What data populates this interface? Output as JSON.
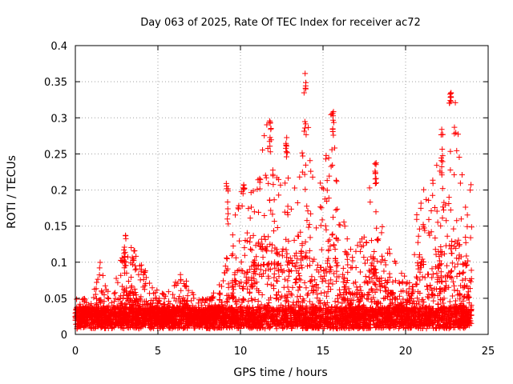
{
  "chart_data": {
    "type": "scatter",
    "title": "Day 063 of 2025, Rate Of TEC Index for receiver ac72",
    "xlabel": "GPS time / hours",
    "ylabel": "ROTI / TECUs",
    "xlim": [
      0,
      25
    ],
    "ylim": [
      0,
      0.4
    ],
    "xticks": [
      "0",
      "5",
      "10",
      "15",
      "20",
      "25"
    ],
    "yticks": [
      "0",
      "0.05",
      "0.1",
      "0.15",
      "0.2",
      "0.25",
      "0.3",
      "0.35",
      "0.4"
    ],
    "grid": true,
    "marker": "+",
    "color": "#ff0000",
    "x_extent": [
      0,
      24
    ],
    "series": [
      {
        "envelope_hours": [
          0,
          0.5,
          1,
          1.5,
          2,
          2.5,
          3,
          3.5,
          4,
          4.5,
          5,
          5.5,
          6,
          6.5,
          7,
          7.5,
          8,
          8.5,
          9,
          9.5,
          10,
          10.5,
          11,
          11.5,
          12,
          12.5,
          13,
          13.5,
          14,
          14.5,
          15,
          15.5,
          16,
          16.5,
          17,
          17.5,
          18,
          18.5,
          19,
          19.5,
          20,
          20.5,
          21,
          21.5,
          22,
          22.5,
          23,
          23.5,
          24
        ],
        "envelope_roti": [
          0.05,
          0.05,
          0.045,
          0.1,
          0.06,
          0.08,
          0.135,
          0.12,
          0.1,
          0.08,
          0.06,
          0.06,
          0.07,
          0.09,
          0.06,
          0.05,
          0.05,
          0.06,
          0.09,
          0.15,
          0.22,
          0.18,
          0.24,
          0.3,
          0.25,
          0.27,
          0.22,
          0.2,
          0.38,
          0.2,
          0.22,
          0.31,
          0.2,
          0.13,
          0.12,
          0.14,
          0.24,
          0.16,
          0.14,
          0.09,
          0.08,
          0.14,
          0.22,
          0.2,
          0.26,
          0.23,
          0.335,
          0.2,
          0.22
        ],
        "clusters": [
          {
            "x": 3.0,
            "y": [
              0.1,
              0.138
            ]
          },
          {
            "x": 9.2,
            "y": [
              0.15,
              0.215
            ]
          },
          {
            "x": 10.2,
            "y": [
              0.19,
              0.21
            ]
          },
          {
            "x": 11.8,
            "y": [
              0.25,
              0.3
            ]
          },
          {
            "x": 12.8,
            "y": [
              0.24,
              0.275
            ]
          },
          {
            "x": 13.9,
            "y": [
              0.28,
              0.38
            ]
          },
          {
            "x": 15.6,
            "y": [
              0.26,
              0.31
            ]
          },
          {
            "x": 18.2,
            "y": [
              0.2,
              0.245
            ]
          },
          {
            "x": 22.2,
            "y": [
              0.22,
              0.285
            ]
          },
          {
            "x": 22.7,
            "y": [
              0.32,
              0.335
            ]
          }
        ]
      }
    ]
  }
}
